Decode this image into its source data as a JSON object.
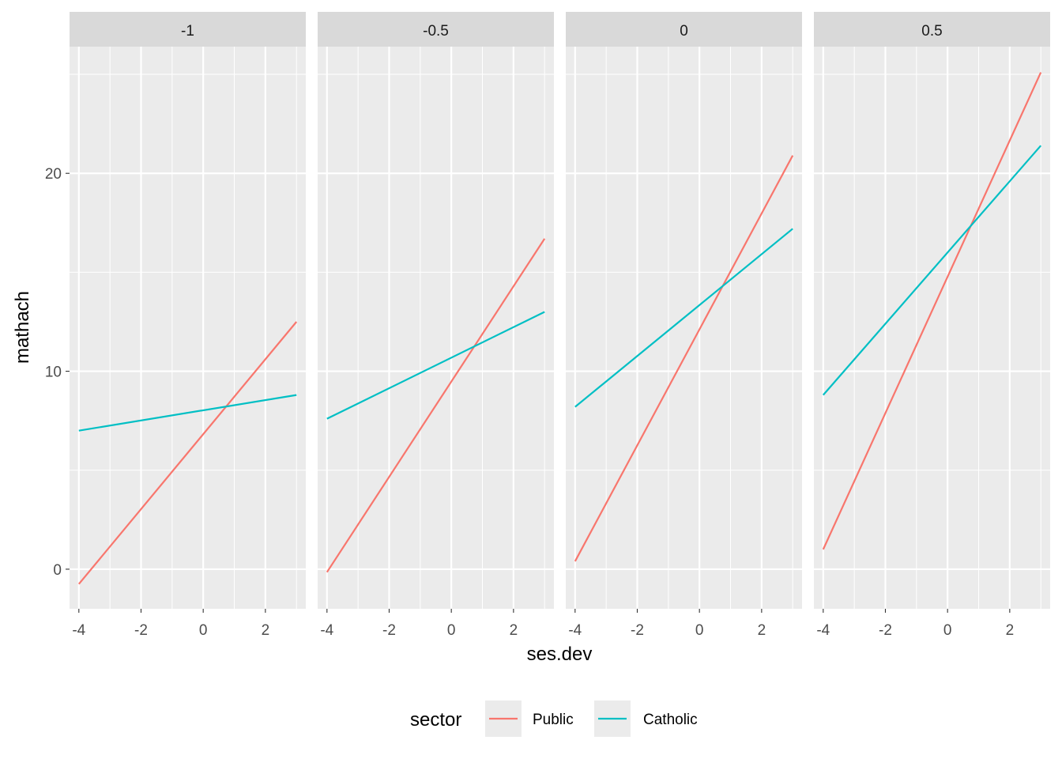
{
  "chart_data": {
    "type": "line",
    "facet_variable_values": [
      "-1",
      "-0.5",
      "0",
      "0.5"
    ],
    "xlabel": "ses.dev",
    "ylabel": "mathach",
    "x_ticks": [
      -4,
      -2,
      0,
      2
    ],
    "x_tick_labels": [
      "-4",
      "-2",
      "0",
      "2"
    ],
    "y_ticks": [
      0,
      10,
      20
    ],
    "y_tick_labels": [
      "0",
      "10",
      "20"
    ],
    "xlim": [
      -4.3,
      3.3
    ],
    "ylim": [
      -2.0,
      26.4
    ],
    "grid": true,
    "legend": {
      "title": "sector",
      "position": "bottom",
      "entries": [
        {
          "label": "Public",
          "color": "#F8766D"
        },
        {
          "label": "Catholic",
          "color": "#00BFC4"
        }
      ]
    },
    "facets": [
      {
        "strip": "-1",
        "series": [
          {
            "name": "Public",
            "color": "#F8766D",
            "x": [
              -4,
              3
            ],
            "y": [
              -0.75,
              12.5
            ]
          },
          {
            "name": "Catholic",
            "color": "#00BFC4",
            "x": [
              -4,
              3
            ],
            "y": [
              7.0,
              8.8
            ]
          }
        ]
      },
      {
        "strip": "-0.5",
        "series": [
          {
            "name": "Public",
            "color": "#F8766D",
            "x": [
              -4,
              3
            ],
            "y": [
              -0.15,
              16.7
            ]
          },
          {
            "name": "Catholic",
            "color": "#00BFC4",
            "x": [
              -4,
              3
            ],
            "y": [
              7.6,
              13.0
            ]
          }
        ]
      },
      {
        "strip": "0",
        "series": [
          {
            "name": "Public",
            "color": "#F8766D",
            "x": [
              -4,
              3
            ],
            "y": [
              0.4,
              20.9
            ]
          },
          {
            "name": "Catholic",
            "color": "#00BFC4",
            "x": [
              -4,
              3
            ],
            "y": [
              8.2,
              17.2
            ]
          }
        ]
      },
      {
        "strip": "0.5",
        "series": [
          {
            "name": "Public",
            "color": "#F8766D",
            "x": [
              -4,
              3
            ],
            "y": [
              1.0,
              25.1
            ]
          },
          {
            "name": "Catholic",
            "color": "#00BFC4",
            "x": [
              -4,
              3
            ],
            "y": [
              8.8,
              21.4
            ]
          }
        ]
      }
    ]
  }
}
